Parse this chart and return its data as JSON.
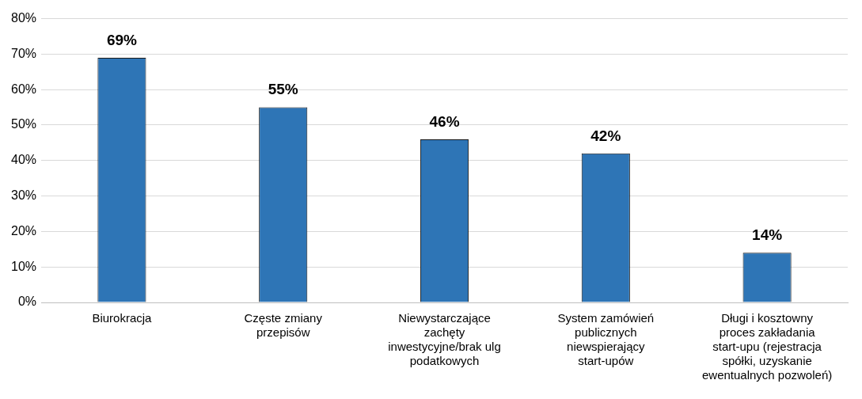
{
  "chart_data": {
    "type": "bar",
    "categories": [
      "Biurokracja",
      "Częste zmiany przepisów",
      "Niewystarczające zachęty inwestycyjne/brak ulg podatkowych",
      "System zamówień publicznych niewspierający start-upów",
      "Długi i kosztowny proces zakładania start-upu (rejestracja spółki, uzyskanie ewentualnych pozwoleń)"
    ],
    "values": [
      69,
      55,
      46,
      42,
      14
    ],
    "value_labels": [
      "69%",
      "55%",
      "46%",
      "42%",
      "14%"
    ],
    "color": "#2e75b6",
    "ylim": [
      0,
      80
    ],
    "yticks": [
      {
        "value": 0,
        "label": "0%"
      },
      {
        "value": 10,
        "label": "10%"
      },
      {
        "value": 20,
        "label": "20%"
      },
      {
        "value": 30,
        "label": "30%"
      },
      {
        "value": 40,
        "label": "40%"
      },
      {
        "value": 50,
        "label": "50%"
      },
      {
        "value": 60,
        "label": "60%"
      },
      {
        "value": 70,
        "label": "70%"
      },
      {
        "value": 80,
        "label": "80%"
      }
    ],
    "grid": "y"
  }
}
